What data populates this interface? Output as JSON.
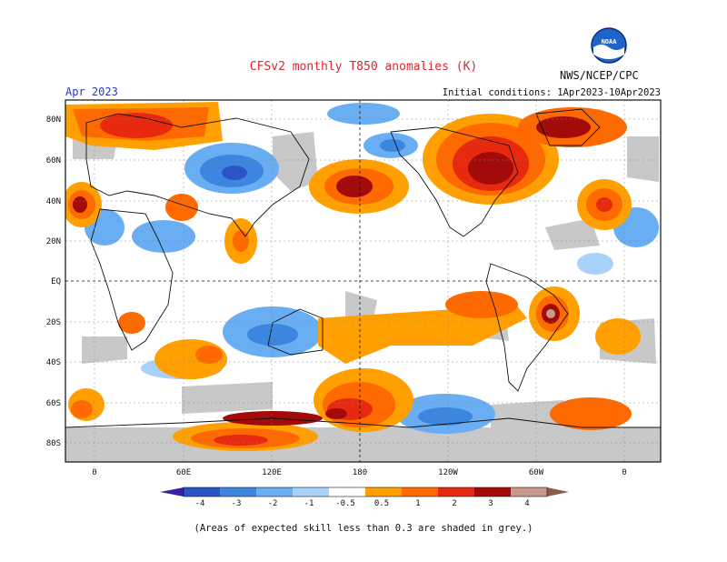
{
  "header": {
    "title": "CFSv2 monthly T850 anomalies (K)",
    "org": "NWS/NCEP/CPC",
    "month": "Apr 2023",
    "initial_conditions": "Initial conditions: 1Apr2023-10Apr2023",
    "logo_text": "NOAA"
  },
  "map": {
    "lat_labels": [
      "80N",
      "60N",
      "40N",
      "20N",
      "EQ",
      "20S",
      "40S",
      "60S",
      "80S"
    ],
    "lon_labels": [
      "0",
      "60E",
      "120E",
      "180",
      "120W",
      "60W",
      "0"
    ],
    "skill_shade_color": "#c8c8c8"
  },
  "colorbar": {
    "labels": [
      "-4",
      "-3",
      "-2",
      "-1",
      "-0.5",
      "0.5",
      "1",
      "2",
      "3",
      "4"
    ],
    "colors": [
      "#3a1fa8",
      "#2b55c6",
      "#3c86e0",
      "#69aef2",
      "#a9d2fa",
      "#ffffff",
      "#ffa000",
      "#ff6a00",
      "#e6290f",
      "#a30a0a",
      "#c89a8c",
      "#8a5a4a"
    ]
  },
  "footer": {
    "note": "(Areas of expected skill less than 0.3 are shaded in grey.)"
  }
}
